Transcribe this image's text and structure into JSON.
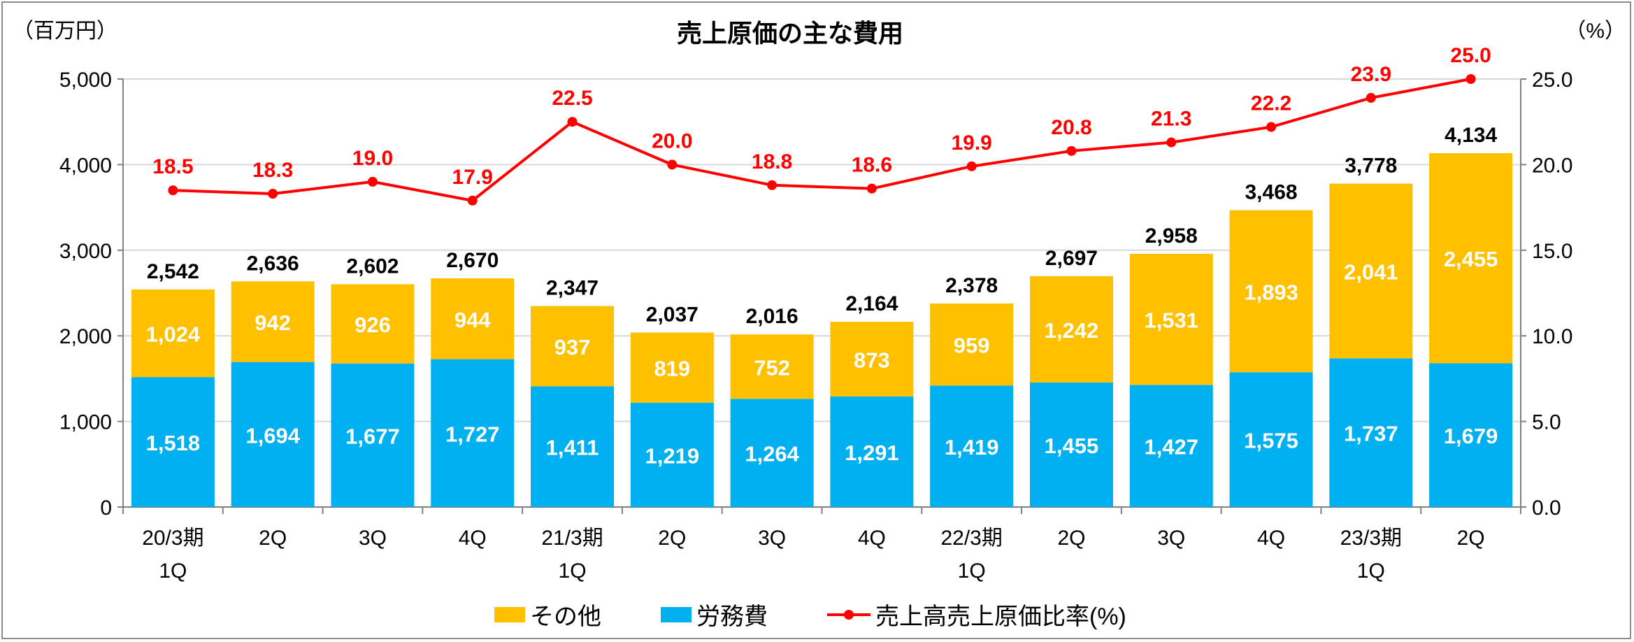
{
  "chart_data": {
    "type": "bar",
    "stacked": true,
    "title": "売上原価の主な費用",
    "y_left_unit": "（百万円）",
    "y_right_unit": "（%）",
    "ylim": [
      0,
      5000
    ],
    "y2lim": [
      0,
      25
    ],
    "y_ticks": [
      "0",
      "1,000",
      "2,000",
      "3,000",
      "4,000",
      "5,000"
    ],
    "y2_ticks": [
      "0.0",
      "5.0",
      "10.0",
      "15.0",
      "20.0",
      "25.0"
    ],
    "grid": true,
    "legend_position": "bottom",
    "categories": [
      [
        "20/3期",
        "1Q"
      ],
      [
        "2Q"
      ],
      [
        "3Q"
      ],
      [
        "4Q"
      ],
      [
        "21/3期",
        "1Q"
      ],
      [
        "2Q"
      ],
      [
        "3Q"
      ],
      [
        "4Q"
      ],
      [
        "22/3期",
        "1Q"
      ],
      [
        "2Q"
      ],
      [
        "3Q"
      ],
      [
        "4Q"
      ],
      [
        "23/3期",
        "1Q"
      ],
      [
        "2Q"
      ]
    ],
    "series": [
      {
        "name": "労務費",
        "kind": "bar",
        "color": "#00b0f0",
        "values": [
          1518,
          1694,
          1677,
          1727,
          1411,
          1219,
          1264,
          1291,
          1419,
          1455,
          1427,
          1575,
          1737,
          1679
        ],
        "labels": [
          "1,518",
          "1,694",
          "1,677",
          "1,727",
          "1,411",
          "1,219",
          "1,264",
          "1,291",
          "1,419",
          "1,455",
          "1,427",
          "1,575",
          "1,737",
          "1,679"
        ]
      },
      {
        "name": "その他",
        "kind": "bar",
        "color": "#ffc000",
        "values": [
          1024,
          942,
          926,
          944,
          937,
          819,
          752,
          873,
          959,
          1242,
          1531,
          1893,
          2041,
          2455
        ],
        "labels": [
          "1,024",
          "942",
          "926",
          "944",
          "937",
          "819",
          "752",
          "873",
          "959",
          "1,242",
          "1,531",
          "1,893",
          "2,041",
          "2,455"
        ]
      },
      {
        "name": "売上高売上原価比率(%)",
        "kind": "line",
        "axis": "right",
        "color": "#ff0000",
        "values": [
          18.5,
          18.3,
          19.0,
          17.9,
          22.5,
          20.0,
          18.8,
          18.6,
          19.9,
          20.8,
          21.3,
          22.2,
          23.9,
          25.0
        ],
        "labels": [
          "18.5",
          "18.3",
          "19.0",
          "17.9",
          "22.5",
          "20.0",
          "18.8",
          "18.6",
          "19.9",
          "20.8",
          "21.3",
          "22.2",
          "23.9",
          "25.0"
        ]
      }
    ],
    "totals": [
      2542,
      2636,
      2602,
      2670,
      2347,
      2037,
      2016,
      2164,
      2378,
      2697,
      2958,
      3468,
      3778,
      4134
    ],
    "total_labels": [
      "2,542",
      "2,636",
      "2,602",
      "2,670",
      "2,347",
      "2,037",
      "2,016",
      "2,164",
      "2,378",
      "2,697",
      "2,958",
      "3,468",
      "3,778",
      "4,134"
    ],
    "legend": [
      "その他",
      "労務費",
      "売上高売上原価比率(%)"
    ]
  }
}
